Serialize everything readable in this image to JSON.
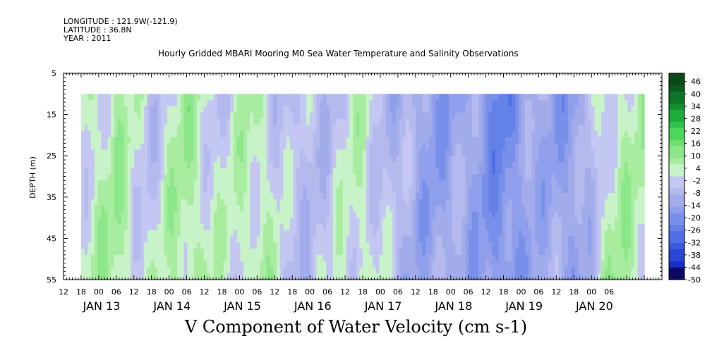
{
  "header": {
    "longitude": "LONGITUDE : 121.9W(-121.9)",
    "latitude": "LATITUDE : 36.8N",
    "year": "YEAR : 2011",
    "title": "Hourly Gridded MBARI Mooring M0 Sea Water Temperature and Salinity Observations"
  },
  "chart_data": {
    "type": "heatmap",
    "title": "Hourly Gridded MBARI Mooring M0 Sea Water Temperature and Salinity Observations",
    "xlabel": "V Component of Water Velocity (cm s-1)",
    "ylabel": "DEPTH (m)",
    "ylim": [
      55,
      5
    ],
    "y_ticks": [
      5,
      15,
      25,
      35,
      45,
      55
    ],
    "x_hour_ticks": [
      "12",
      "18",
      "00",
      "06",
      "12",
      "18",
      "00",
      "06",
      "12",
      "18",
      "00",
      "06",
      "12",
      "18",
      "00",
      "06",
      "12",
      "18",
      "00",
      "06",
      "12",
      "18",
      "00",
      "06",
      "12",
      "18",
      "00",
      "06",
      "12",
      "18",
      "00",
      "06"
    ],
    "x_day_labels": [
      "JAN 13",
      "JAN 14",
      "JAN 15",
      "JAN 16",
      "JAN 17",
      "JAN 18",
      "JAN 19",
      "JAN 20"
    ],
    "data_range": {
      "start": "2011-01-12 18:00",
      "end": "2011-01-20 12:00",
      "depth_top": 10,
      "depth_bottom": 55
    },
    "colorbar": {
      "ticks": [
        "46",
        "40",
        "34",
        "28",
        "22",
        "16",
        "10",
        "4",
        "-2",
        "-8",
        "-14",
        "-20",
        "-26",
        "-32",
        "-38",
        "-44",
        "-50"
      ],
      "min": -50,
      "max": 50,
      "step": 3,
      "neg_colors": [
        "#0b0b66",
        "#1a2fc6",
        "#2a44d4",
        "#3b5bdd",
        "#4f6ee3",
        "#6381e7",
        "#7990ea",
        "#8f9feb",
        "#a2aceb",
        "#b4b9ee",
        "#c4c7f2"
      ],
      "pos_colors": [
        "#c8f2c8",
        "#a8eca0",
        "#8ce68a",
        "#6fe070",
        "#4cd65a",
        "#2fc34a",
        "#1faa3c",
        "#138f30",
        "#0d7526",
        "#0a5c1e",
        "#084a18"
      ]
    },
    "day_means": [
      {
        "day": "JAN 12 18:00",
        "v": 2
      },
      {
        "day": "JAN 13 06:00",
        "v": 6
      },
      {
        "day": "JAN 13 18:00",
        "v": -3
      },
      {
        "day": "JAN 14 06:00",
        "v": 7
      },
      {
        "day": "JAN 14 18:00",
        "v": -1
      },
      {
        "day": "JAN 15 06:00",
        "v": 5
      },
      {
        "day": "JAN 15 18:00",
        "v": -6
      },
      {
        "day": "JAN 16 06:00",
        "v": -4
      },
      {
        "day": "JAN 16 18:00",
        "v": 3
      },
      {
        "day": "JAN 17 06:00",
        "v": -8
      },
      {
        "day": "JAN 17 18:00",
        "v": -14
      },
      {
        "day": "JAN 18 06:00",
        "v": -12
      },
      {
        "day": "JAN 18 18:00",
        "v": -22
      },
      {
        "day": "JAN 19 06:00",
        "v": -10
      },
      {
        "day": "JAN 19 18:00",
        "v": -16
      },
      {
        "day": "JAN 20 06:00",
        "v": 4
      }
    ]
  }
}
